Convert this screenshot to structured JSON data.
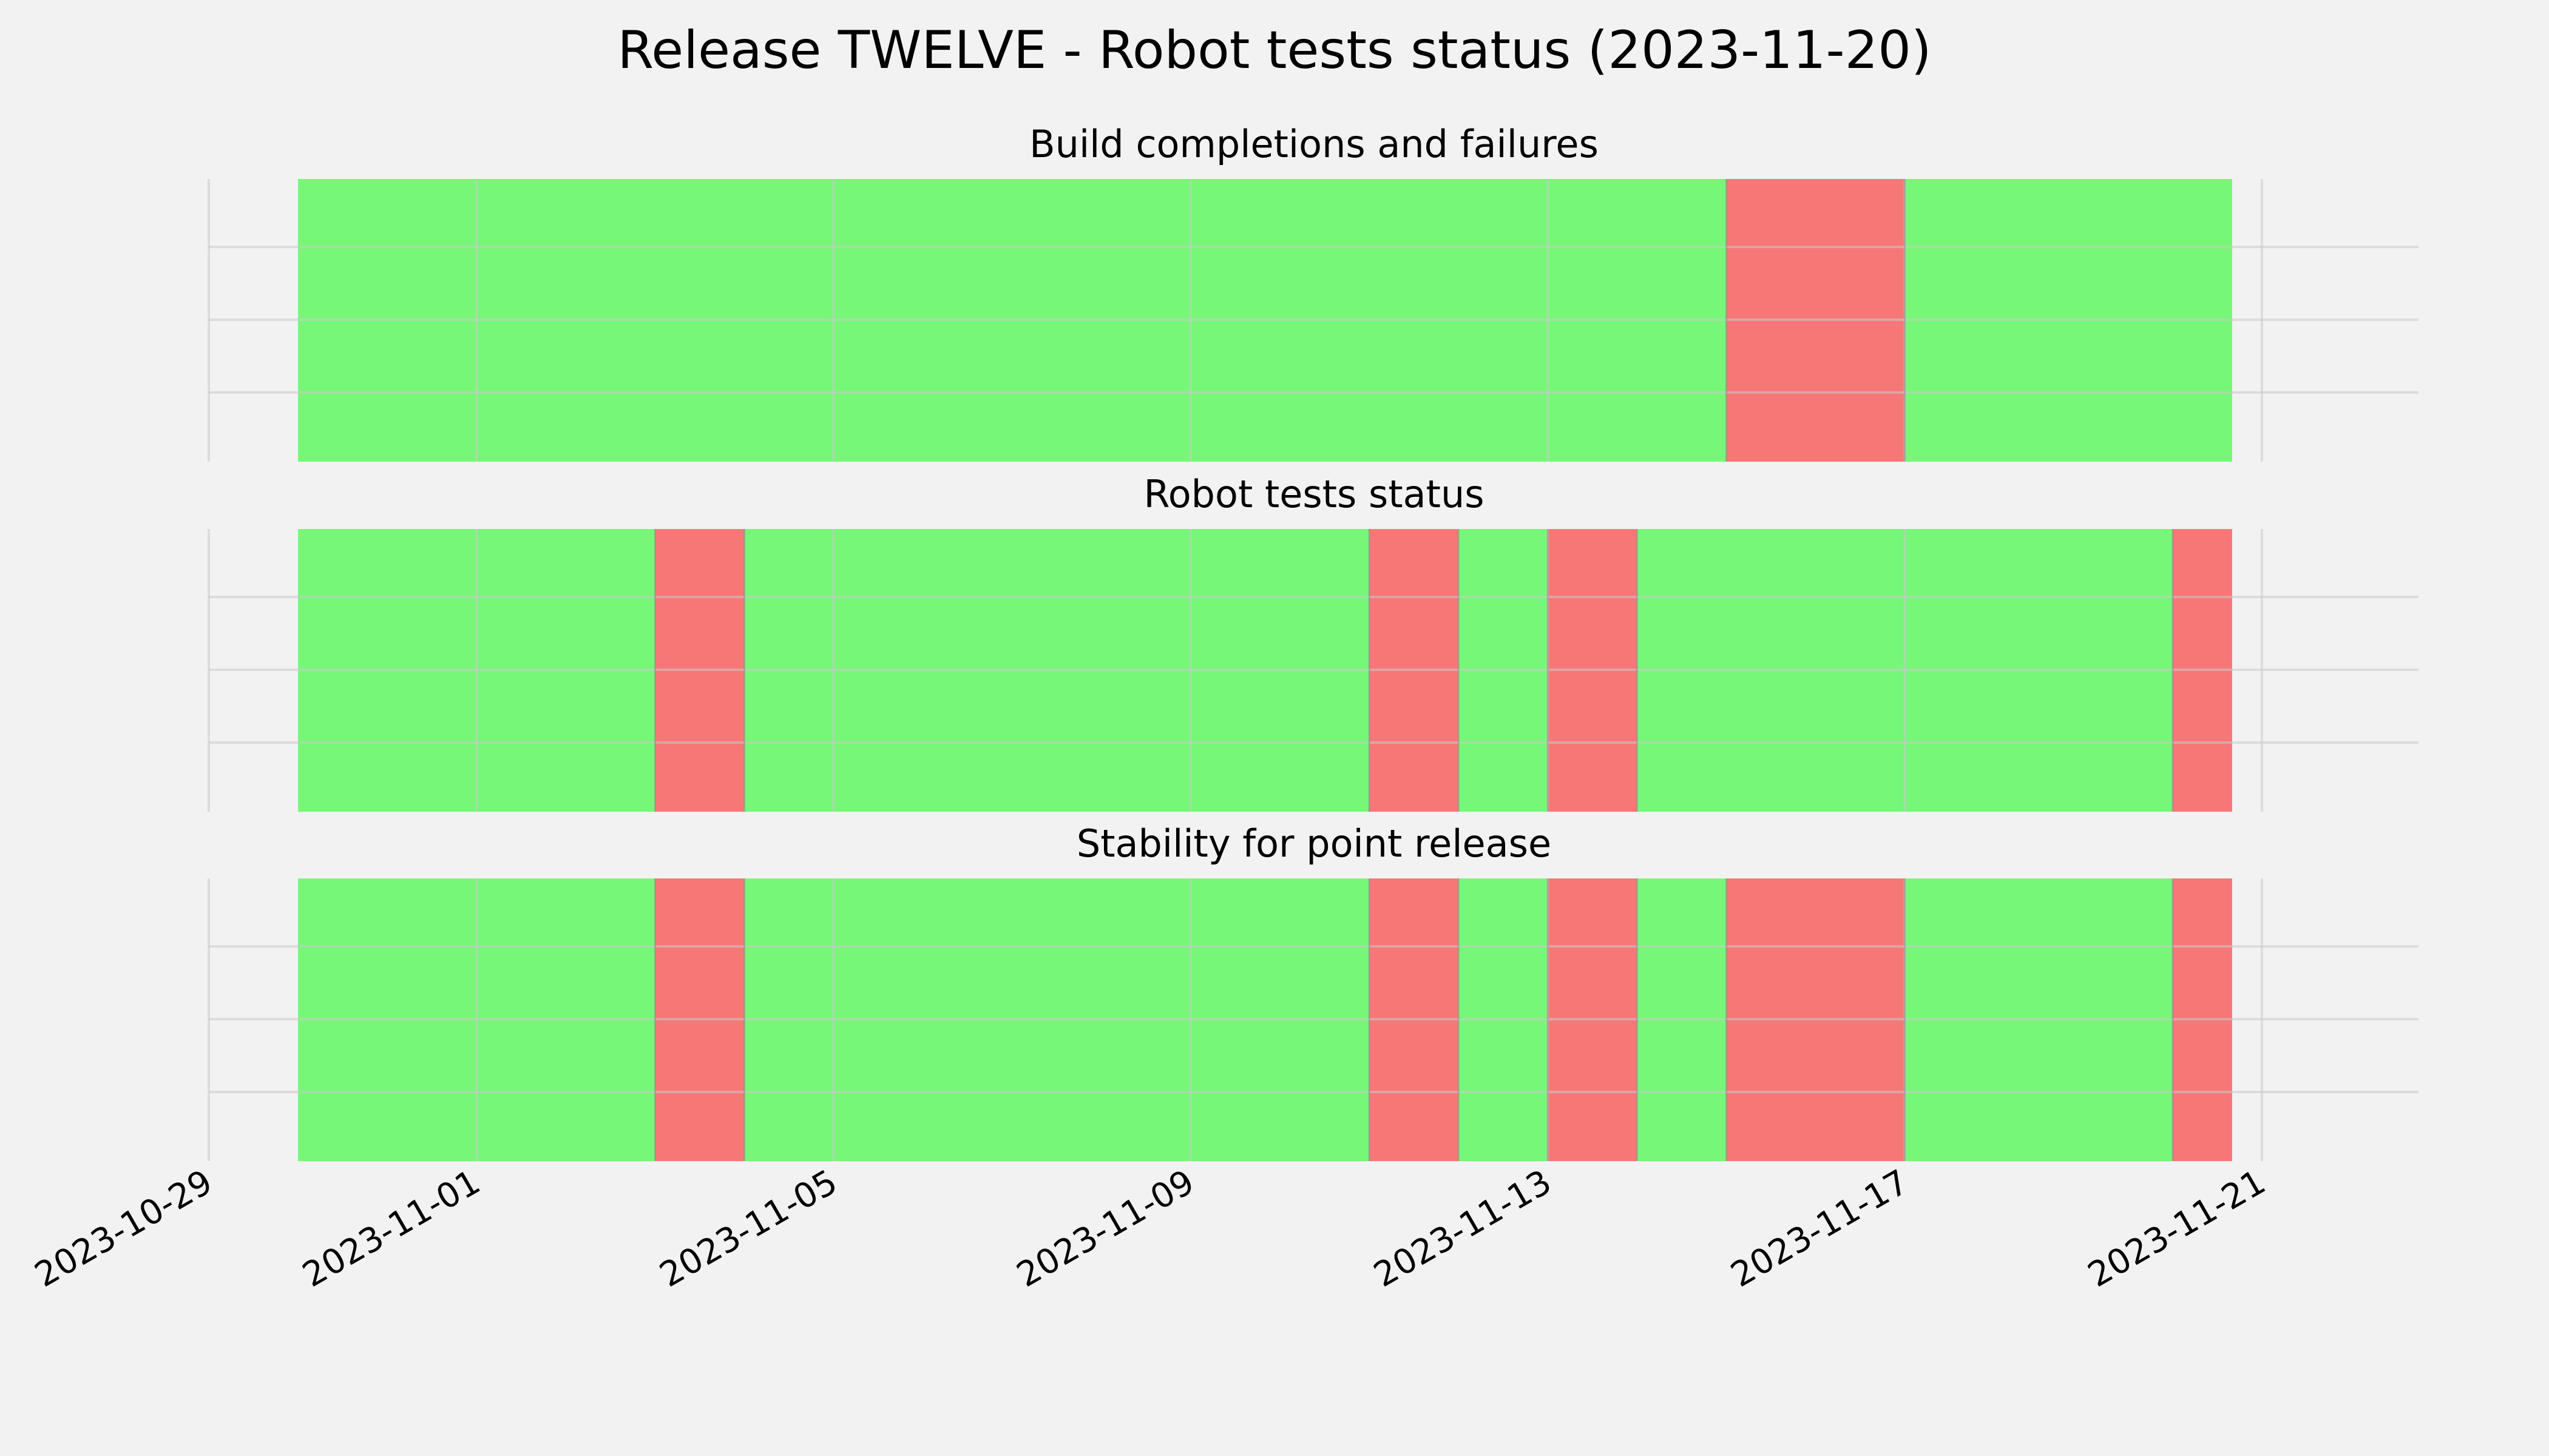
{
  "chart_data": {
    "type": "timeline",
    "title": "Release TWELVE - Robot tests status (2023-11-20)",
    "x_range": [
      "2023-10-29",
      "2023-11-22"
    ],
    "x_ticks": [
      "2023-10-29",
      "2023-11-01",
      "2023-11-05",
      "2023-11-09",
      "2023-11-13",
      "2023-11-17",
      "2023-11-21"
    ],
    "colors": {
      "pass": "#77f777",
      "fail": "#f77777",
      "background": "#f2f2f2",
      "grid": "#cbcbcb"
    },
    "panels": [
      {
        "title": "Build completions and failures",
        "segments": [
          {
            "start": "2023-10-30",
            "end": "2023-11-15",
            "status": "pass"
          },
          {
            "start": "2023-11-15",
            "end": "2023-11-17",
            "status": "fail"
          },
          {
            "start": "2023-11-17",
            "end": "2023-11-20 16:00",
            "status": "pass"
          }
        ]
      },
      {
        "title": "Robot tests status",
        "segments": [
          {
            "start": "2023-10-30",
            "end": "2023-11-03",
            "status": "pass"
          },
          {
            "start": "2023-11-03",
            "end": "2023-11-04",
            "status": "fail"
          },
          {
            "start": "2023-11-04",
            "end": "2023-11-11",
            "status": "pass"
          },
          {
            "start": "2023-11-11",
            "end": "2023-11-12",
            "status": "fail"
          },
          {
            "start": "2023-11-12",
            "end": "2023-11-13",
            "status": "pass"
          },
          {
            "start": "2023-11-13",
            "end": "2023-11-14",
            "status": "fail"
          },
          {
            "start": "2023-11-14",
            "end": "2023-11-20",
            "status": "pass"
          },
          {
            "start": "2023-11-20",
            "end": "2023-11-20 16:00",
            "status": "fail"
          }
        ]
      },
      {
        "title": "Stability for point release",
        "segments": [
          {
            "start": "2023-10-30",
            "end": "2023-11-03",
            "status": "pass"
          },
          {
            "start": "2023-11-03",
            "end": "2023-11-04",
            "status": "fail"
          },
          {
            "start": "2023-11-04",
            "end": "2023-11-11",
            "status": "pass"
          },
          {
            "start": "2023-11-11",
            "end": "2023-11-12",
            "status": "fail"
          },
          {
            "start": "2023-11-12",
            "end": "2023-11-13",
            "status": "pass"
          },
          {
            "start": "2023-11-13",
            "end": "2023-11-14",
            "status": "fail"
          },
          {
            "start": "2023-11-14",
            "end": "2023-11-15",
            "status": "pass"
          },
          {
            "start": "2023-11-15",
            "end": "2023-11-17",
            "status": "fail"
          },
          {
            "start": "2023-11-17",
            "end": "2023-11-20",
            "status": "pass"
          },
          {
            "start": "2023-11-20",
            "end": "2023-11-20 16:00",
            "status": "fail"
          }
        ]
      }
    ],
    "grid": true,
    "legend": "none"
  }
}
